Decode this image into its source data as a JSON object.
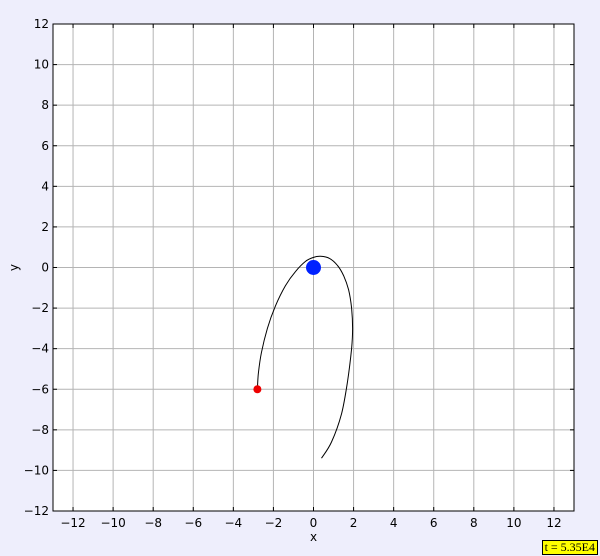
{
  "chart_data": {
    "type": "scatter",
    "title": "",
    "xlabel": "x",
    "ylabel": "y",
    "xlim": [
      -13,
      13
    ],
    "ylim": [
      -12,
      12
    ],
    "xticks": [
      -12,
      -10,
      -8,
      -6,
      -4,
      -2,
      0,
      2,
      4,
      6,
      8,
      10,
      12
    ],
    "yticks": [
      -12,
      -10,
      -8,
      -6,
      -4,
      -2,
      0,
      2,
      4,
      6,
      8,
      10,
      12
    ],
    "xtick_labels": [
      "−12",
      "−10",
      "−8",
      "−6",
      "−4",
      "−2",
      "0",
      "2",
      "4",
      "6",
      "8",
      "10",
      "12"
    ],
    "ytick_labels": [
      "−12",
      "−10",
      "−8",
      "−6",
      "−4",
      "−2",
      "0",
      "2",
      "4",
      "6",
      "8",
      "10",
      "12"
    ],
    "grid": true,
    "trajectory": {
      "color": "#000000",
      "x": [
        0.4,
        0.9,
        1.4,
        1.7,
        1.9,
        1.95,
        1.9,
        1.75,
        1.5,
        1.2,
        0.8,
        0.35,
        0.0,
        -0.4,
        -0.9,
        -1.4,
        -1.9,
        -2.3,
        -2.6,
        -2.75,
        -2.8
      ],
      "y": [
        -9.4,
        -8.6,
        -7.2,
        -5.6,
        -4.0,
        -3.0,
        -2.0,
        -1.1,
        -0.4,
        0.1,
        0.45,
        0.55,
        0.5,
        0.3,
        -0.2,
        -0.9,
        -1.9,
        -3.0,
        -4.2,
        -5.2,
        -6.0
      ]
    },
    "bodies": [
      {
        "label": "central body",
        "x": 0.0,
        "y": 0.0,
        "color": "#0022ff"
      },
      {
        "label": "orbiting body",
        "x": -2.8,
        "y": -6.0,
        "color": "#ee0000"
      }
    ]
  },
  "time_readout": "t = 5.35E4"
}
